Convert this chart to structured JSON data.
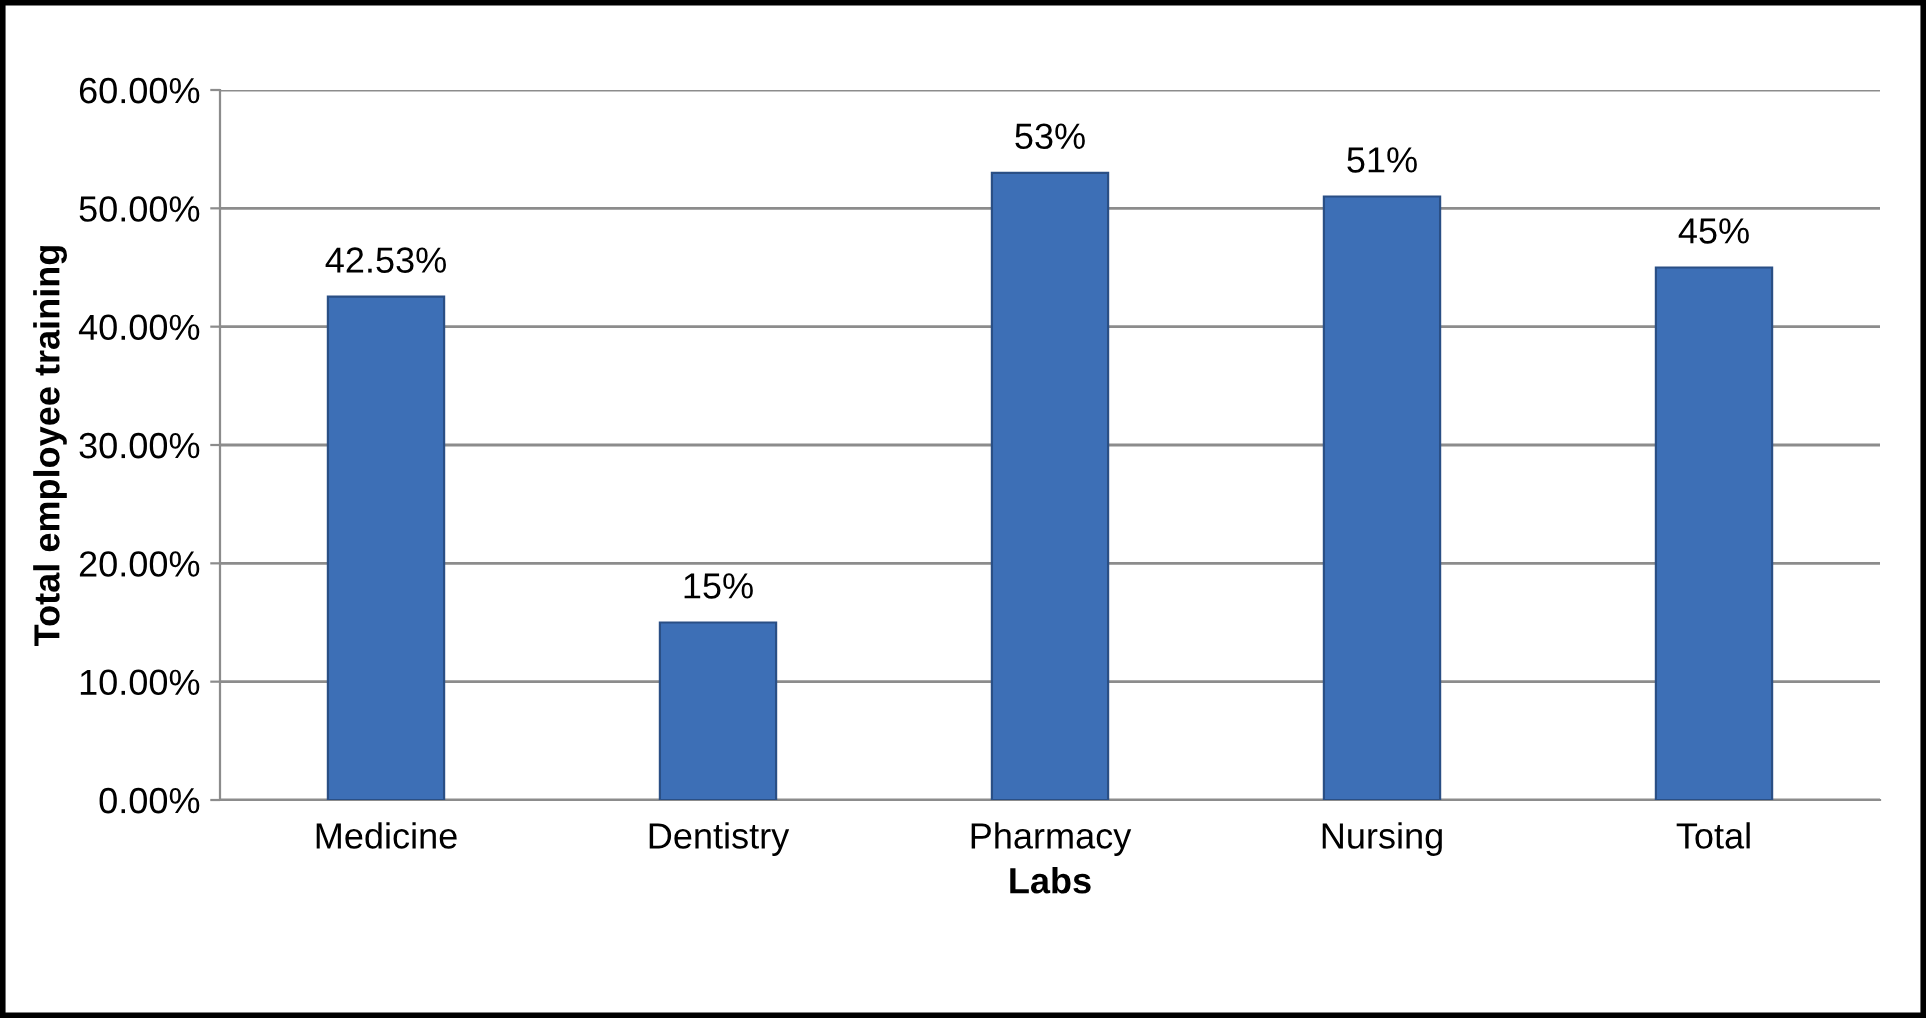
{
  "chart_data": {
    "type": "bar",
    "xlabel": "Labs",
    "ylabel": "Total employee training",
    "categories": [
      "Medicine",
      "Dentistry",
      "Pharmacy",
      "Nursing",
      "Total"
    ],
    "values": [
      42.53,
      15,
      53,
      51,
      45
    ],
    "value_labels": [
      "42.53%",
      "15%",
      "53%",
      "51%",
      "45%"
    ],
    "color": "#3d6fb6",
    "ylim": [
      0,
      60
    ],
    "yticks": [
      {
        "value": 0,
        "label": "0.00%"
      },
      {
        "value": 10,
        "label": "10.00%"
      },
      {
        "value": 20,
        "label": "20.00%"
      },
      {
        "value": 30,
        "label": "30.00%"
      },
      {
        "value": 40,
        "label": "40.00%"
      },
      {
        "value": 50,
        "label": "50.00%"
      },
      {
        "value": 60,
        "label": "60.00%"
      }
    ],
    "grid": "y",
    "legend": false
  }
}
